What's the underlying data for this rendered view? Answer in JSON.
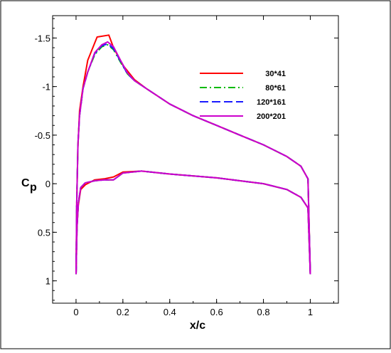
{
  "chart_data": {
    "type": "line",
    "title": "",
    "xlabel": "x/c",
    "ylabel": "C",
    "ylabel_sub": "p",
    "xlim": [
      -0.1,
      1.12
    ],
    "ylim": [
      1.23,
      -1.73
    ],
    "y_inverted": true,
    "grid": false,
    "legend_position": "top-right",
    "x_ticks": [
      {
        "value": 0,
        "label": "0"
      },
      {
        "value": 0.2,
        "label": "0.2"
      },
      {
        "value": 0.4,
        "label": "0.4"
      },
      {
        "value": 0.6,
        "label": "0.6"
      },
      {
        "value": 0.8,
        "label": "0.8"
      },
      {
        "value": 1,
        "label": "1"
      }
    ],
    "y_ticks": [
      {
        "value": -1.5,
        "label": "-1.5"
      },
      {
        "value": -1,
        "label": "-1"
      },
      {
        "value": -0.5,
        "label": "-0.5"
      },
      {
        "value": 0,
        "label": "0"
      },
      {
        "value": 0.5,
        "label": "0.5"
      },
      {
        "value": 1,
        "label": "1"
      }
    ],
    "series": [
      {
        "name": "30*41",
        "color": "#ff0000",
        "dash": "solid",
        "upper": [
          [
            0,
            0.93
          ],
          [
            0.003,
            0.2
          ],
          [
            0.008,
            -0.38
          ],
          [
            0.015,
            -0.75
          ],
          [
            0.03,
            -1.0
          ],
          [
            0.05,
            -1.27
          ],
          [
            0.09,
            -1.51
          ],
          [
            0.14,
            -1.53
          ],
          [
            0.16,
            -1.4
          ],
          [
            0.2,
            -1.22
          ],
          [
            0.25,
            -1.07
          ],
          [
            0.3,
            -0.98
          ],
          [
            0.4,
            -0.82
          ],
          [
            0.5,
            -0.7
          ],
          [
            0.6,
            -0.6
          ],
          [
            0.7,
            -0.5
          ],
          [
            0.8,
            -0.4
          ],
          [
            0.9,
            -0.28
          ],
          [
            0.96,
            -0.18
          ],
          [
            0.99,
            -0.05
          ],
          [
            1.0,
            0.93
          ]
        ],
        "lower": [
          [
            0,
            0.93
          ],
          [
            0.004,
            0.45
          ],
          [
            0.01,
            0.22
          ],
          [
            0.02,
            0.06
          ],
          [
            0.04,
            0.01
          ],
          [
            0.08,
            -0.04
          ],
          [
            0.12,
            -0.05
          ],
          [
            0.16,
            -0.07
          ],
          [
            0.2,
            -0.12
          ],
          [
            0.28,
            -0.13
          ],
          [
            0.4,
            -0.1
          ],
          [
            0.6,
            -0.06
          ],
          [
            0.8,
            0.0
          ],
          [
            0.9,
            0.06
          ],
          [
            0.96,
            0.14
          ],
          [
            0.99,
            0.25
          ],
          [
            1.0,
            0.93
          ]
        ]
      },
      {
        "name": "80*61",
        "color": "#00bb00",
        "dash": "dashdot",
        "upper": [
          [
            0,
            0.93
          ],
          [
            0.003,
            0.2
          ],
          [
            0.008,
            -0.4
          ],
          [
            0.015,
            -0.7
          ],
          [
            0.03,
            -0.98
          ],
          [
            0.05,
            -1.15
          ],
          [
            0.08,
            -1.33
          ],
          [
            0.11,
            -1.41
          ],
          [
            0.135,
            -1.43
          ],
          [
            0.16,
            -1.38
          ],
          [
            0.19,
            -1.25
          ],
          [
            0.22,
            -1.13
          ],
          [
            0.25,
            -1.06
          ],
          [
            0.3,
            -0.98
          ],
          [
            0.4,
            -0.82
          ],
          [
            0.5,
            -0.7
          ],
          [
            0.6,
            -0.6
          ],
          [
            0.7,
            -0.5
          ],
          [
            0.8,
            -0.4
          ],
          [
            0.9,
            -0.28
          ],
          [
            0.96,
            -0.18
          ],
          [
            0.99,
            -0.05
          ],
          [
            1.0,
            0.93
          ]
        ],
        "lower": [
          [
            0,
            0.93
          ],
          [
            0.004,
            0.45
          ],
          [
            0.01,
            0.2
          ],
          [
            0.02,
            0.04
          ],
          [
            0.04,
            -0.01
          ],
          [
            0.08,
            -0.03
          ],
          [
            0.12,
            -0.04
          ],
          [
            0.16,
            -0.04
          ],
          [
            0.2,
            -0.11
          ],
          [
            0.28,
            -0.13
          ],
          [
            0.4,
            -0.1
          ],
          [
            0.6,
            -0.06
          ],
          [
            0.8,
            0.0
          ],
          [
            0.9,
            0.06
          ],
          [
            0.96,
            0.14
          ],
          [
            0.99,
            0.25
          ],
          [
            1.0,
            0.93
          ]
        ]
      },
      {
        "name": "120*161",
        "color": "#1a1aff",
        "dash": "dashed",
        "upper": [
          [
            0,
            0.93
          ],
          [
            0.003,
            0.2
          ],
          [
            0.008,
            -0.4
          ],
          [
            0.015,
            -0.7
          ],
          [
            0.03,
            -0.98
          ],
          [
            0.05,
            -1.15
          ],
          [
            0.08,
            -1.34
          ],
          [
            0.11,
            -1.42
          ],
          [
            0.135,
            -1.44
          ],
          [
            0.16,
            -1.39
          ],
          [
            0.19,
            -1.26
          ],
          [
            0.22,
            -1.13
          ],
          [
            0.25,
            -1.06
          ],
          [
            0.3,
            -0.98
          ],
          [
            0.4,
            -0.82
          ],
          [
            0.5,
            -0.7
          ],
          [
            0.6,
            -0.6
          ],
          [
            0.7,
            -0.5
          ],
          [
            0.8,
            -0.4
          ],
          [
            0.9,
            -0.28
          ],
          [
            0.96,
            -0.18
          ],
          [
            0.99,
            -0.05
          ],
          [
            1.0,
            0.93
          ]
        ],
        "lower": [
          [
            0,
            0.93
          ],
          [
            0.004,
            0.45
          ],
          [
            0.01,
            0.2
          ],
          [
            0.02,
            0.04
          ],
          [
            0.04,
            -0.01
          ],
          [
            0.08,
            -0.03
          ],
          [
            0.12,
            -0.04
          ],
          [
            0.16,
            -0.04
          ],
          [
            0.2,
            -0.11
          ],
          [
            0.28,
            -0.13
          ],
          [
            0.4,
            -0.1
          ],
          [
            0.6,
            -0.06
          ],
          [
            0.8,
            0.0
          ],
          [
            0.9,
            0.06
          ],
          [
            0.96,
            0.14
          ],
          [
            0.99,
            0.25
          ],
          [
            1.0,
            0.93
          ]
        ]
      },
      {
        "name": "200*201",
        "color": "#cc00cc",
        "dash": "solid",
        "upper": [
          [
            0,
            0.93
          ],
          [
            0.003,
            0.2
          ],
          [
            0.008,
            -0.4
          ],
          [
            0.015,
            -0.7
          ],
          [
            0.03,
            -0.98
          ],
          [
            0.05,
            -1.15
          ],
          [
            0.08,
            -1.35
          ],
          [
            0.11,
            -1.43
          ],
          [
            0.135,
            -1.46
          ],
          [
            0.16,
            -1.41
          ],
          [
            0.19,
            -1.27
          ],
          [
            0.22,
            -1.14
          ],
          [
            0.25,
            -1.06
          ],
          [
            0.3,
            -0.98
          ],
          [
            0.4,
            -0.82
          ],
          [
            0.5,
            -0.7
          ],
          [
            0.6,
            -0.6
          ],
          [
            0.7,
            -0.5
          ],
          [
            0.8,
            -0.4
          ],
          [
            0.9,
            -0.28
          ],
          [
            0.96,
            -0.18
          ],
          [
            0.99,
            -0.05
          ],
          [
            1.0,
            0.93
          ]
        ],
        "lower": [
          [
            0,
            0.93
          ],
          [
            0.004,
            0.45
          ],
          [
            0.01,
            0.2
          ],
          [
            0.02,
            0.04
          ],
          [
            0.04,
            -0.01
          ],
          [
            0.08,
            -0.03
          ],
          [
            0.12,
            -0.04
          ],
          [
            0.16,
            -0.04
          ],
          [
            0.2,
            -0.11
          ],
          [
            0.28,
            -0.13
          ],
          [
            0.4,
            -0.1
          ],
          [
            0.6,
            -0.06
          ],
          [
            0.8,
            0.0
          ],
          [
            0.9,
            0.06
          ],
          [
            0.96,
            0.14
          ],
          [
            0.99,
            0.25
          ],
          [
            1.0,
            0.93
          ]
        ]
      }
    ]
  }
}
